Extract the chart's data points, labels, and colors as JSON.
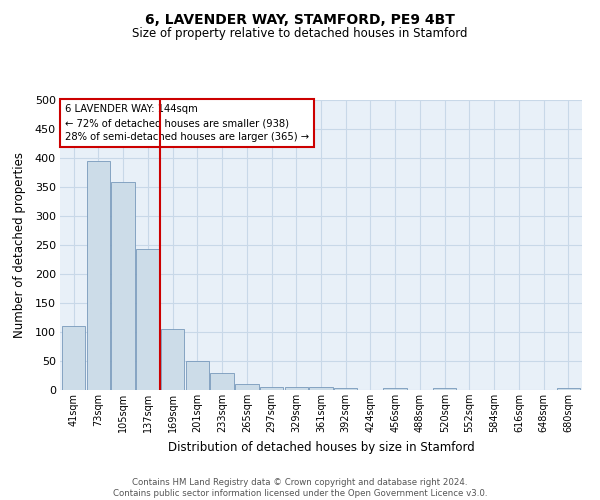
{
  "title": "6, LAVENDER WAY, STAMFORD, PE9 4BT",
  "subtitle": "Size of property relative to detached houses in Stamford",
  "xlabel": "Distribution of detached houses by size in Stamford",
  "ylabel": "Number of detached properties",
  "footer_line1": "Contains HM Land Registry data © Crown copyright and database right 2024.",
  "footer_line2": "Contains public sector information licensed under the Open Government Licence v3.0.",
  "categories": [
    "41sqm",
    "73sqm",
    "105sqm",
    "137sqm",
    "169sqm",
    "201sqm",
    "233sqm",
    "265sqm",
    "297sqm",
    "329sqm",
    "361sqm",
    "392sqm",
    "424sqm",
    "456sqm",
    "488sqm",
    "520sqm",
    "552sqm",
    "584sqm",
    "616sqm",
    "648sqm",
    "680sqm"
  ],
  "values": [
    111,
    394,
    358,
    243,
    105,
    50,
    30,
    10,
    5,
    6,
    6,
    4,
    0,
    3,
    0,
    4,
    0,
    0,
    0,
    0,
    4
  ],
  "bar_color": "#ccdce8",
  "bar_edge_color": "#7799bb",
  "grid_color": "#c8d8e8",
  "bg_color": "#e8f0f8",
  "vline_color": "#cc0000",
  "vline_index": 3.48,
  "annotation_text": "6 LAVENDER WAY: 144sqm\n← 72% of detached houses are smaller (938)\n28% of semi-detached houses are larger (365) →",
  "annotation_box_facecolor": "#ffffff",
  "annotation_box_edgecolor": "#cc0000",
  "ylim": [
    0,
    500
  ],
  "yticks": [
    0,
    50,
    100,
    150,
    200,
    250,
    300,
    350,
    400,
    450,
    500
  ]
}
